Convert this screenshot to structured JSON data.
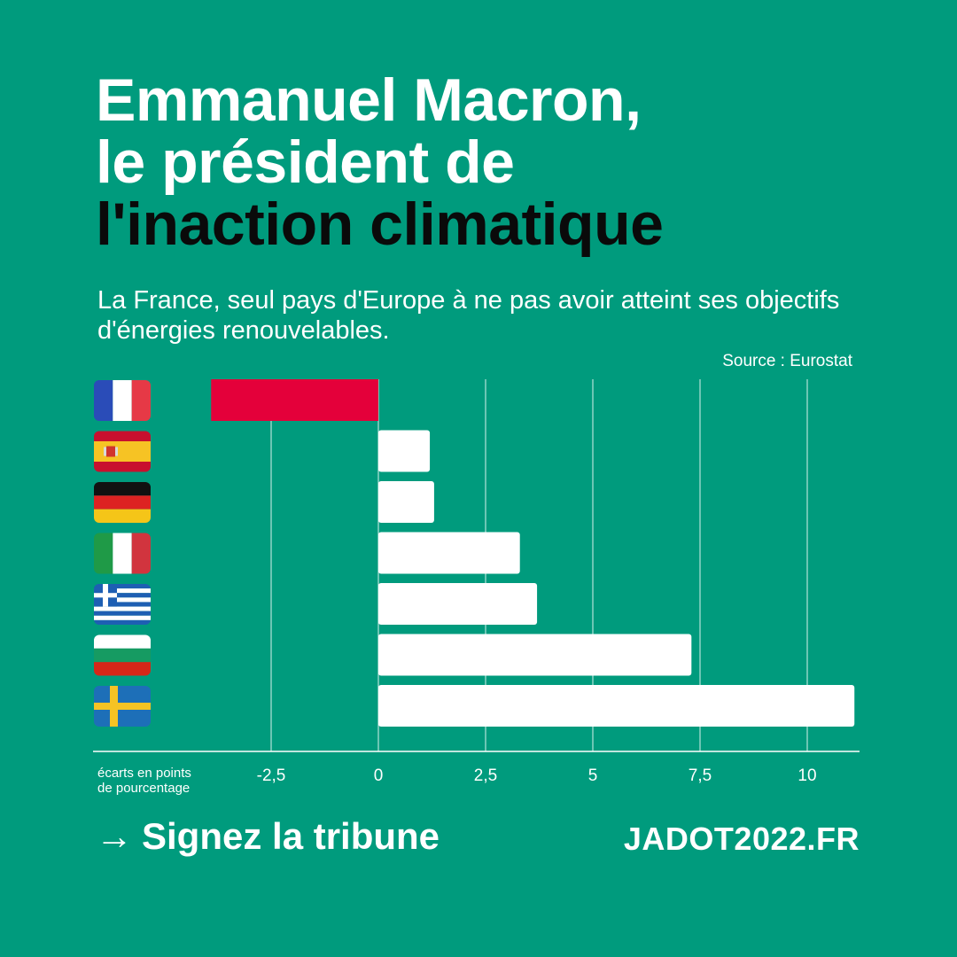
{
  "headline": {
    "line1": "Emmanuel Macron,",
    "line2": "le président de",
    "line3": "l'inaction climatique"
  },
  "subtitle": "La France, seul pays d'Europe à ne pas avoir atteint ses objectifs d'énergies renouvelables.",
  "source": "Source : Eurostat",
  "colors": {
    "background": "#009b7d",
    "negative_bar": "#e4003a",
    "positive_bar": "#ffffff",
    "headline_accent": "#0a0a0a"
  },
  "chart_data": {
    "type": "bar",
    "orientation": "horizontal",
    "categories": [
      "France",
      "Spain",
      "Germany",
      "Italy",
      "Greece",
      "Bulgaria",
      "Sweden"
    ],
    "category_icons": [
      "flag-france",
      "flag-spain",
      "flag-germany",
      "flag-italy",
      "flag-greece",
      "flag-bulgaria",
      "flag-sweden"
    ],
    "values": [
      -3.9,
      1.2,
      1.3,
      3.3,
      3.7,
      7.3,
      11.1
    ],
    "xlabel": "écarts en points de pourcentage",
    "xlabel_lines": [
      "écarts en points",
      "de pourcentage"
    ],
    "xlim": [
      -5,
      11.2
    ],
    "ticks": [
      -2.5,
      0,
      2.5,
      5,
      7.5,
      10
    ],
    "tick_labels": [
      "-2,5",
      "0",
      "2,5",
      "5",
      "7,5",
      "10"
    ],
    "grid": true
  },
  "footer": {
    "cta_arrow": "→",
    "cta_label": "Signez la tribune",
    "site": "JADOT2022.FR"
  }
}
